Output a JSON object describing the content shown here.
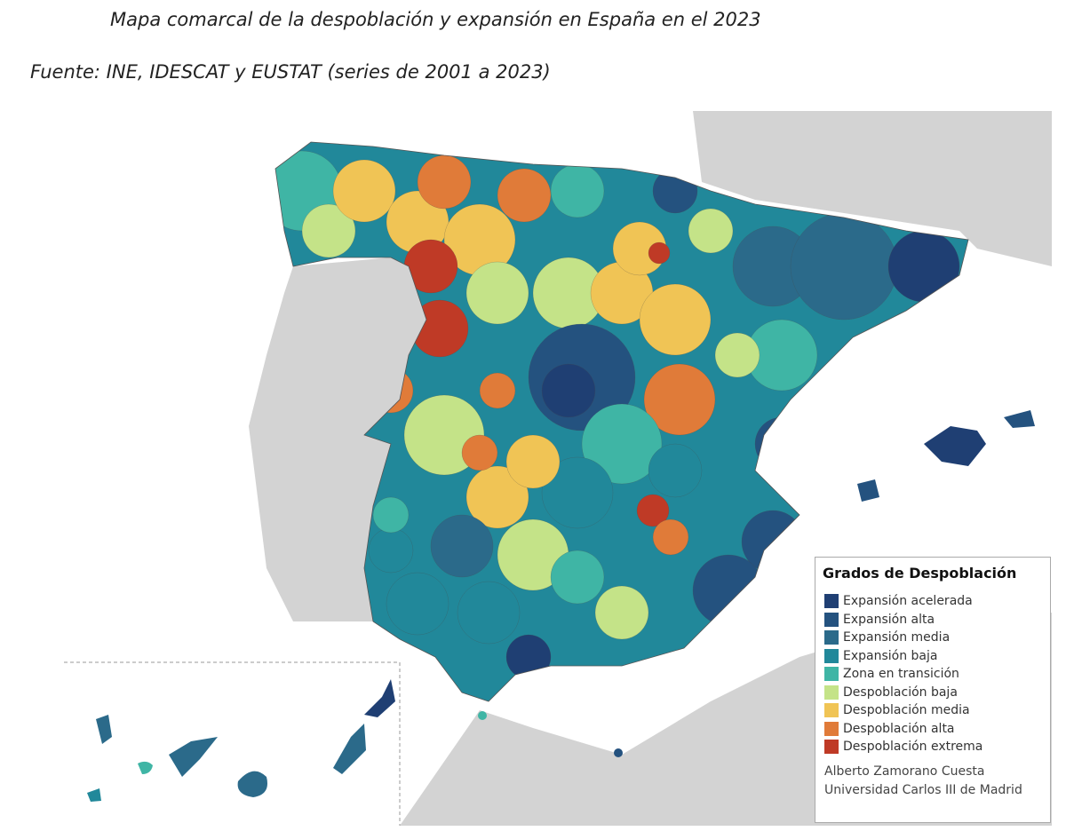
{
  "title": "Mapa comarcal de la despoblación y expansión en España en el 2023",
  "source": "Fuente: INE, IDESCAT y EUSTAT (series de 2001 a 2023)",
  "legend": {
    "title": "Grados de Despoblación",
    "items": [
      {
        "label": "Expansión acelerada",
        "color": "#1f3f73"
      },
      {
        "label": "Expansión alta",
        "color": "#24527f"
      },
      {
        "label": "Expansión media",
        "color": "#2b6a8a"
      },
      {
        "label": "Expansión baja",
        "color": "#21889a"
      },
      {
        "label": "Zona en transición",
        "color": "#3fb5a5"
      },
      {
        "label": "Despoblación baja",
        "color": "#c4e388"
      },
      {
        "label": "Despoblación media",
        "color": "#f0c455"
      },
      {
        "label": "Despoblación alta",
        "color": "#e07b39"
      },
      {
        "label": "Despoblación extrema",
        "color": "#bf3a26"
      }
    ]
  },
  "credits": [
    "Alberto Zamorano Cuesta",
    "Universidad Carlos III de Madrid"
  ]
}
